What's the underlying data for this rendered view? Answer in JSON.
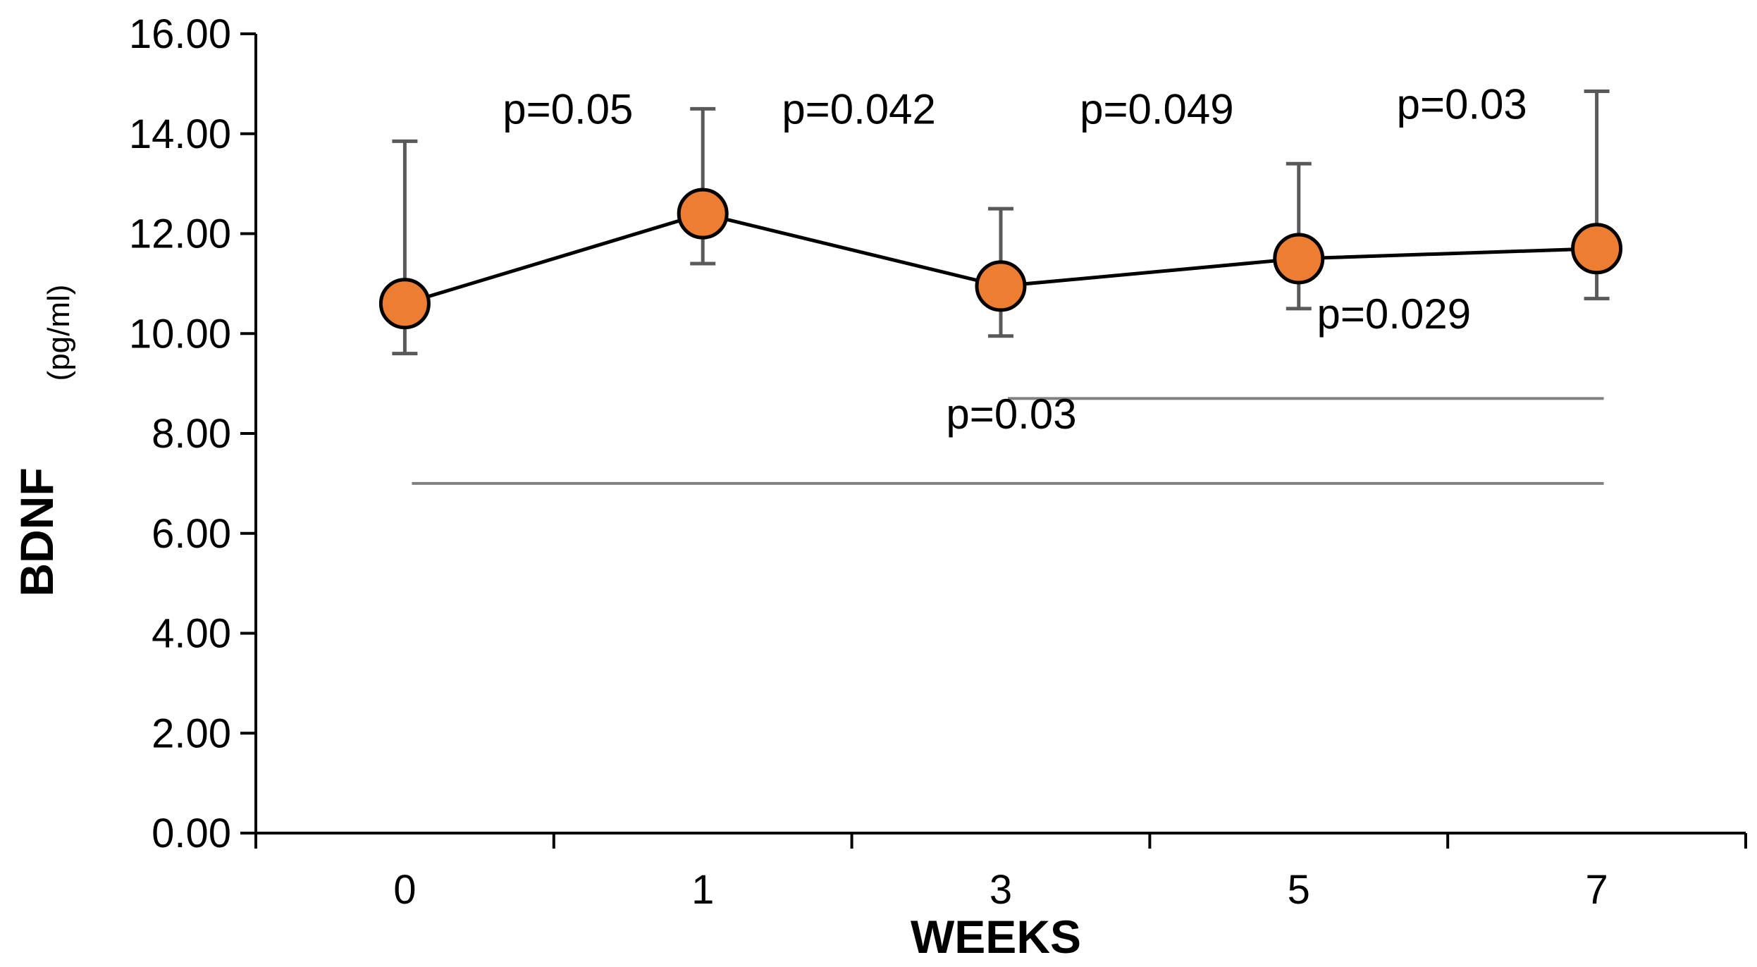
{
  "chart_data": {
    "type": "line",
    "title": "",
    "xlabel": "WEEKS",
    "ylabel": "BDNF",
    "ylabel_unit": "(pg/ml)",
    "categories": [
      "0",
      "1",
      "3",
      "5",
      "7"
    ],
    "ylim": [
      0,
      16
    ],
    "yticks": [
      "0.00",
      "2.00",
      "4.00",
      "6.00",
      "8.00",
      "10.00",
      "12.00",
      "14.00",
      "16.00"
    ],
    "grid": false,
    "legend": "none",
    "series": [
      {
        "values": [
          10.6,
          12.4,
          10.95,
          11.5,
          11.7
        ],
        "error_upper": [
          13.85,
          14.5,
          12.5,
          13.4,
          14.85
        ],
        "error_lower": [
          9.6,
          11.4,
          9.95,
          10.5,
          10.7
        ],
        "marker_color": "#ED7D31",
        "line_color": "#000000"
      }
    ],
    "annotations": [
      {
        "text": "p=0.05",
        "between": [
          "0",
          "1"
        ]
      },
      {
        "text": "p=0.042",
        "between": [
          "1",
          "3"
        ]
      },
      {
        "text": "p=0.049",
        "between": [
          "3",
          "5"
        ]
      },
      {
        "text": "p=0.03",
        "between": [
          "5",
          "7"
        ]
      },
      {
        "text": "p=0.029",
        "between": [
          "3",
          "7"
        ]
      },
      {
        "text": "p=0.03",
        "between": [
          "0",
          "7"
        ]
      }
    ],
    "bracket_color": "#808080",
    "error_bar_color": "#595959"
  }
}
